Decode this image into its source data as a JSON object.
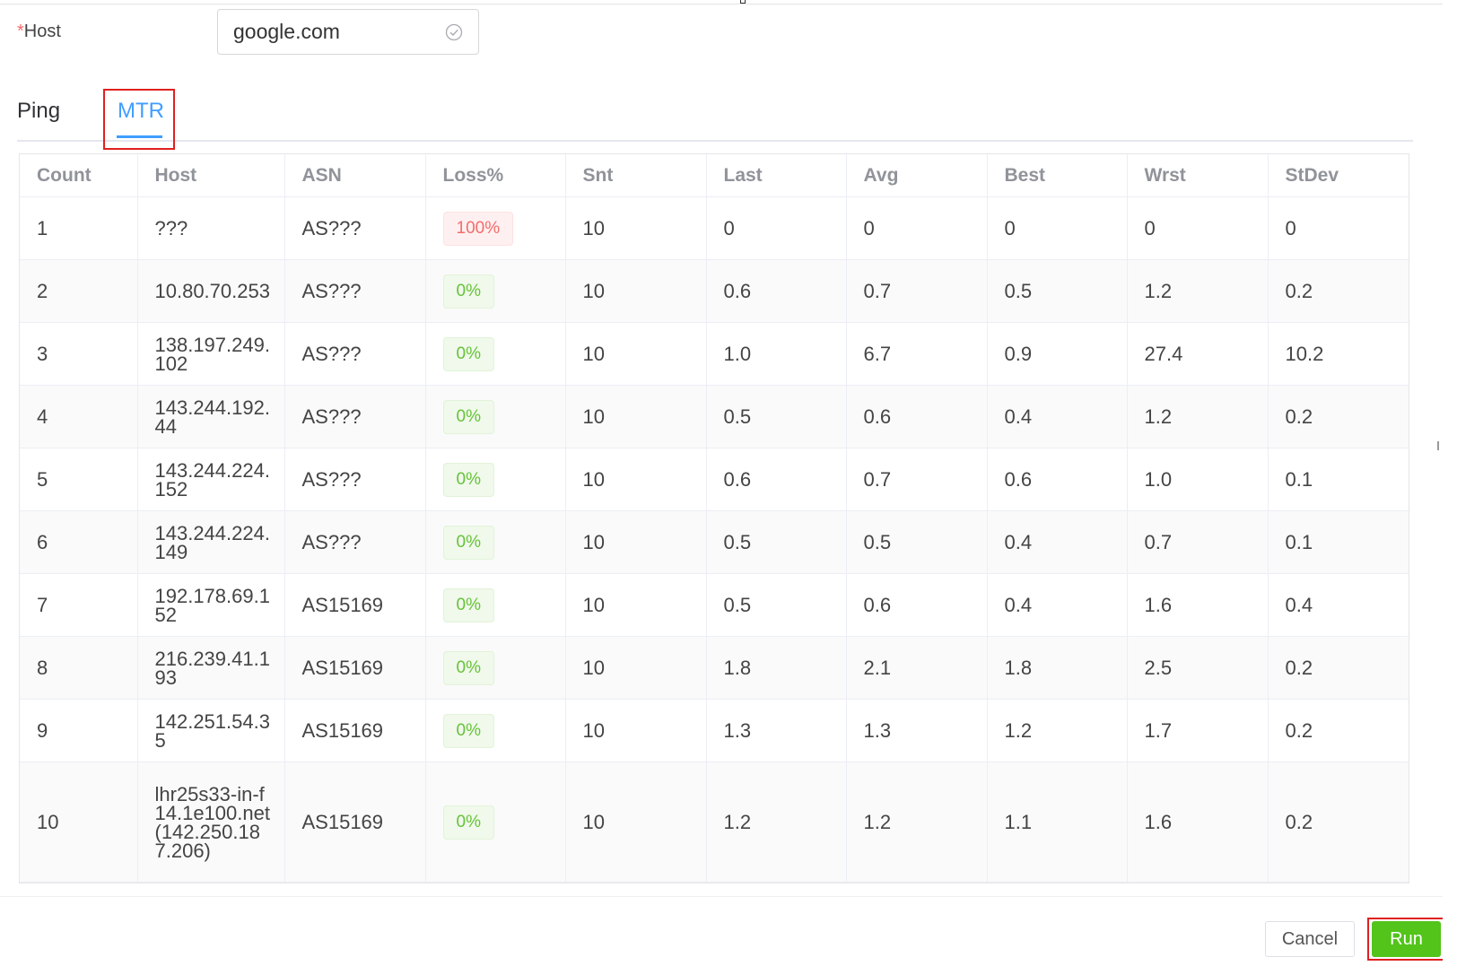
{
  "form": {
    "host_label": "Host",
    "required_mark": "*",
    "host_value": "google.com",
    "host_valid_icon": "circle-check-icon"
  },
  "tabs": [
    {
      "label": "Ping",
      "active": false
    },
    {
      "label": "MTR",
      "active": true
    }
  ],
  "table": {
    "columns": [
      "Count",
      "Host",
      "ASN",
      "Loss%",
      "Snt",
      "Last",
      "Avg",
      "Best",
      "Wrst",
      "StDev"
    ],
    "rows": [
      {
        "count": "1",
        "host": "???",
        "asn": "AS???",
        "loss": "100%",
        "snt": "10",
        "last": "0",
        "avg": "0",
        "best": "0",
        "wrst": "0",
        "stdev": "0"
      },
      {
        "count": "2",
        "host": "10.80.70.253",
        "asn": "AS???",
        "loss": "0%",
        "snt": "10",
        "last": "0.6",
        "avg": "0.7",
        "best": "0.5",
        "wrst": "1.2",
        "stdev": "0.2"
      },
      {
        "count": "3",
        "host": "138.197.249.102",
        "asn": "AS???",
        "loss": "0%",
        "snt": "10",
        "last": "1.0",
        "avg": "6.7",
        "best": "0.9",
        "wrst": "27.4",
        "stdev": "10.2"
      },
      {
        "count": "4",
        "host": "143.244.192.44",
        "asn": "AS???",
        "loss": "0%",
        "snt": "10",
        "last": "0.5",
        "avg": "0.6",
        "best": "0.4",
        "wrst": "1.2",
        "stdev": "0.2"
      },
      {
        "count": "5",
        "host": "143.244.224.152",
        "asn": "AS???",
        "loss": "0%",
        "snt": "10",
        "last": "0.6",
        "avg": "0.7",
        "best": "0.6",
        "wrst": "1.0",
        "stdev": "0.1"
      },
      {
        "count": "6",
        "host": "143.244.224.149",
        "asn": "AS???",
        "loss": "0%",
        "snt": "10",
        "last": "0.5",
        "avg": "0.5",
        "best": "0.4",
        "wrst": "0.7",
        "stdev": "0.1"
      },
      {
        "count": "7",
        "host": "192.178.69.152",
        "asn": "AS15169",
        "loss": "0%",
        "snt": "10",
        "last": "0.5",
        "avg": "0.6",
        "best": "0.4",
        "wrst": "1.6",
        "stdev": "0.4"
      },
      {
        "count": "8",
        "host": "216.239.41.193",
        "asn": "AS15169",
        "loss": "0%",
        "snt": "10",
        "last": "1.8",
        "avg": "2.1",
        "best": "1.8",
        "wrst": "2.5",
        "stdev": "0.2"
      },
      {
        "count": "9",
        "host": "142.251.54.35",
        "asn": "AS15169",
        "loss": "0%",
        "snt": "10",
        "last": "1.3",
        "avg": "1.3",
        "best": "1.2",
        "wrst": "1.7",
        "stdev": "0.2"
      },
      {
        "count": "10",
        "host": "lhr25s33-in-f14.1e100.net (142.250.187.206)",
        "asn": "AS15169",
        "loss": "0%",
        "snt": "10",
        "last": "1.2",
        "avg": "1.2",
        "best": "1.1",
        "wrst": "1.6",
        "stdev": "0.2"
      }
    ]
  },
  "footer": {
    "cancel_label": "Cancel",
    "run_label": "Run"
  },
  "colors": {
    "accent": "#409eff",
    "success": "#67c23a",
    "danger": "#f56c6c",
    "run_button": "#52c41a",
    "highlight_box": "#e02020"
  }
}
